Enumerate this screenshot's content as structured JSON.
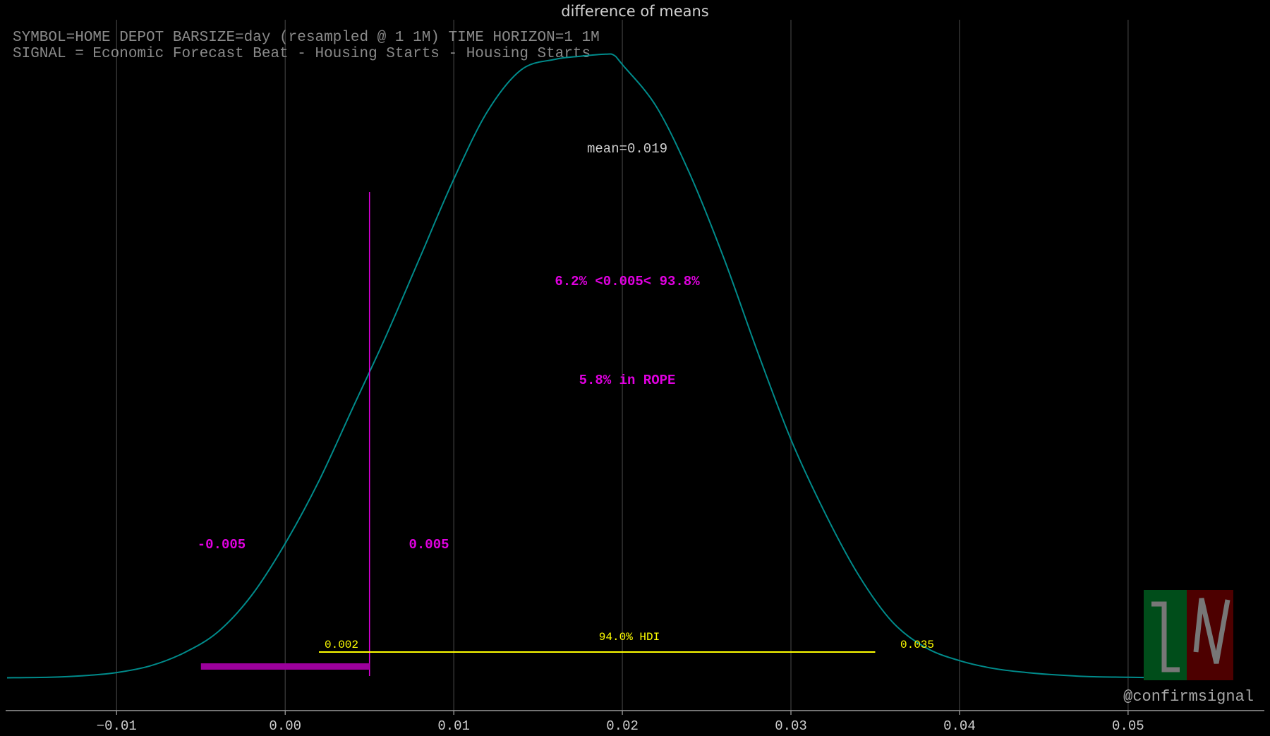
{
  "chart_data": {
    "type": "area",
    "title": "difference of means",
    "subtitle_lines": [
      "SYMBOL=HOME DEPOT BARSIZE=day (resampled @ 1 1M) TIME HORIZON=1 1M",
      "SIGNAL = Economic Forecast Beat - Housing Starts - Housing Starts"
    ],
    "xlim": [
      -0.0165,
      0.058
    ],
    "ylim": [
      0,
      1.22
    ],
    "xticks": [
      -0.01,
      0.0,
      0.01,
      0.02,
      0.03,
      0.04,
      0.05
    ],
    "xtick_labels": [
      "−0.01",
      "0.00",
      "0.01",
      "0.02",
      "0.03",
      "0.04",
      "0.05"
    ],
    "grid": "vertical",
    "series": [
      {
        "x": [
          -0.0165,
          -0.014,
          -0.012,
          -0.01,
          -0.008,
          -0.006,
          -0.004,
          -0.002,
          0.0,
          0.002,
          0.004,
          0.006,
          0.008,
          0.01,
          0.012,
          0.014,
          0.016,
          0.0175,
          0.019,
          0.0195,
          0.02,
          0.022,
          0.024,
          0.026,
          0.028,
          0.03,
          0.032,
          0.034,
          0.036,
          0.038,
          0.04,
          0.042,
          0.044,
          0.046,
          0.048,
          0.05,
          0.052,
          0.0545
        ],
        "y": [
          0.002,
          0.003,
          0.006,
          0.012,
          0.025,
          0.05,
          0.09,
          0.16,
          0.26,
          0.38,
          0.52,
          0.66,
          0.81,
          0.96,
          1.09,
          1.17,
          1.19,
          1.196,
          1.2,
          1.198,
          1.18,
          1.1,
          0.97,
          0.81,
          0.63,
          0.46,
          0.32,
          0.2,
          0.11,
          0.06,
          0.035,
          0.02,
          0.012,
          0.007,
          0.004,
          0.003,
          0.002,
          0.001
        ],
        "color": "#008b8b"
      }
    ],
    "mean_label": "mean=0.019",
    "rope": {
      "low": -0.005,
      "high": 0.005,
      "low_label": "-0.005",
      "high_label": "0.005",
      "in_rope_label": "5.8% in ROPE",
      "ref_label": "6.2% <0.005< 93.8%",
      "color": "#e000e0",
      "bar_color": "#9c009c"
    },
    "hdi": {
      "low": 0.002,
      "high": 0.035,
      "label": "94.0% HDI",
      "low_label": "0.002",
      "high_label": "0.035",
      "color": "#ffff00"
    }
  },
  "watermark": {
    "handle": "@confirmsignal",
    "logo_colors": [
      "#004d1a",
      "#4d0000"
    ]
  }
}
